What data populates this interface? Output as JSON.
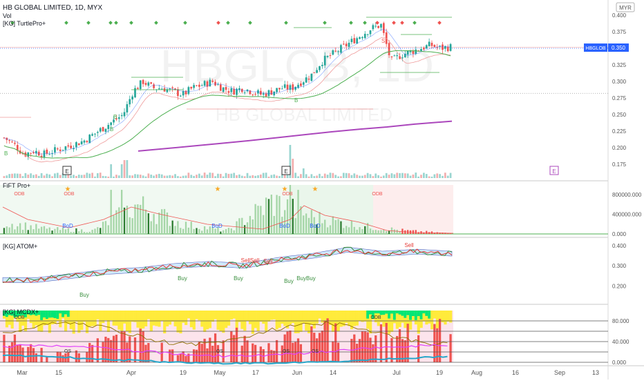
{
  "header": {
    "symbol_line": "HB GLOBAL LIMITED, 1D, MYX",
    "indicator_vol": "Vol",
    "indicator_turtle": "[KG] TurtlePro+",
    "currency": "MYR"
  },
  "watermark": {
    "ticker": "HBGLOB, 1D",
    "name": "HB GLOBAL LIMITED"
  },
  "price_badge": {
    "ticker": "HBGLOB",
    "value": "0.350"
  },
  "panes": {
    "price": {
      "ticks": [
        "0.400",
        "0.375",
        "0.350",
        "0.325",
        "0.300",
        "0.275",
        "0.250",
        "0.225",
        "0.200",
        "0.175"
      ]
    },
    "fift": {
      "title": "FiFT Pro+",
      "ticks": [
        "800000.000",
        "400000.000",
        "0.000"
      ]
    },
    "atom": {
      "title": "[KG] ATOM+",
      "ticks": [
        "0.400",
        "0.300",
        "0.200"
      ]
    },
    "mcdx": {
      "title": "[KG] MCDX+",
      "ticks": [
        "80.000",
        "40.000",
        "0.000"
      ]
    }
  },
  "x_axis": {
    "labels": [
      "Mar",
      "15",
      "Apr",
      "19",
      "May",
      "17",
      "Jun",
      "14",
      "Jul",
      "19",
      "Aug",
      "16",
      "Sep",
      "13"
    ]
  },
  "markers": {
    "earnings": [
      "E",
      "E",
      "E"
    ],
    "bod": [
      "BoD",
      "BoD",
      "BoD",
      "BoD"
    ],
    "odb": [
      "ODB",
      "ODB",
      "ODB",
      "ODB"
    ],
    "os": [
      "OS",
      "OS",
      "OS",
      "OS"
    ],
    "buy": [
      "Buy",
      "Buy",
      "Buy",
      "Buy",
      "BuyBuy"
    ],
    "sell": [
      "SellSell",
      "Sell",
      "Sell"
    ],
    "price_letters": [
      "B",
      "B",
      "B",
      "B",
      "S"
    ]
  },
  "colors": {
    "up": "#26a69a",
    "down": "#ef5350",
    "ma_long": "#ab47bc",
    "ma_mid": "#4caf50",
    "ma_short": "#ef9a9a",
    "price_line": "#2962ff",
    "mcdx_yellow": "#ffeb3b",
    "mcdx_red": "#ef5350",
    "mcdx_green": "#00e676"
  },
  "chart_data": [
    {
      "type": "candlestick",
      "title": "HB GLOBAL LIMITED, 1D, MYX",
      "x": [
        "Mar",
        "15",
        "Apr",
        "19",
        "May",
        "17",
        "Jun",
        "14",
        "Jul",
        "19"
      ],
      "ylim": [
        0.16,
        0.405
      ],
      "last_price": 0.35,
      "close_path": [
        0.215,
        0.205,
        0.19,
        0.195,
        0.19,
        0.195,
        0.2,
        0.205,
        0.21,
        0.22,
        0.23,
        0.24,
        0.25,
        0.285,
        0.3,
        0.29,
        0.29,
        0.285,
        0.28,
        0.29,
        0.295,
        0.3,
        0.29,
        0.285,
        0.29,
        0.285,
        0.28,
        0.285,
        0.29,
        0.29,
        0.3,
        0.31,
        0.33,
        0.34,
        0.35,
        0.36,
        0.37,
        0.38,
        0.385,
        0.33,
        0.34,
        0.345,
        0.35,
        0.355,
        0.35,
        0.352
      ],
      "series": [
        {
          "name": "",
          "values": [
            0.182,
            0.185,
            0.19,
            0.196,
            0.203,
            0.21,
            0.218,
            0.226,
            0.232,
            0.24
          ]
        },
        {
          "name": "",
          "values": [
            0.2,
            0.21,
            0.225,
            0.245,
            0.255,
            0.262,
            0.27,
            0.285,
            0.31,
            0.325
          ]
        }
      ]
    },
    {
      "type": "bar",
      "title": "FiFT Pro+",
      "ylim": [
        0,
        1000000
      ],
      "values": [
        350000,
        150000,
        100000,
        900000,
        300000,
        100000,
        1000000,
        500000,
        250000,
        100000,
        20000
      ]
    },
    {
      "type": "line",
      "title": "[KG] ATOM+",
      "ylim": [
        0.12,
        0.42
      ],
      "values": [
        0.23,
        0.23,
        0.25,
        0.27,
        0.28,
        0.3,
        0.31,
        0.3,
        0.33,
        0.35,
        0.38,
        0.36,
        0.37,
        0.36
      ]
    },
    {
      "type": "bar",
      "title": "[KG] MCDX+",
      "ylim": [
        0,
        100
      ],
      "values": [
        60,
        20,
        40,
        70,
        20,
        70,
        40,
        85,
        60,
        80,
        80
      ]
    }
  ]
}
